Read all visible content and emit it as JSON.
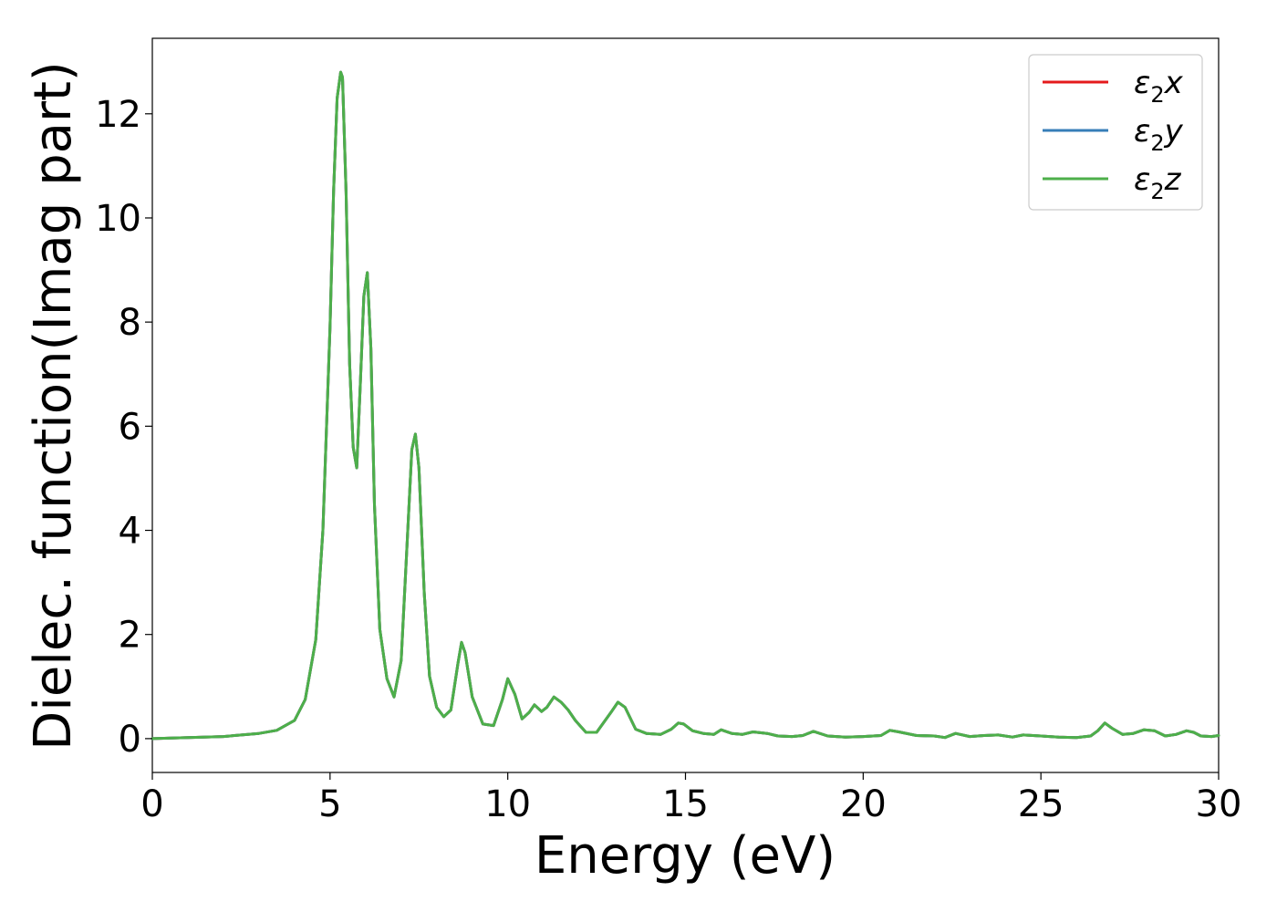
{
  "chart_data": {
    "type": "line",
    "title": "",
    "xlabel": "Energy (eV)",
    "ylabel": "Dielec. function(Imag part)",
    "xlim": [
      0,
      30
    ],
    "ylim": [
      -0.65,
      13.45
    ],
    "xticks": [
      0,
      5,
      10,
      15,
      20,
      25,
      30
    ],
    "yticks": [
      0,
      2,
      4,
      6,
      8,
      10,
      12
    ],
    "xtick_labels": [
      "0",
      "5",
      "10",
      "15",
      "20",
      "25",
      "30"
    ],
    "ytick_labels": [
      "0",
      "2",
      "4",
      "6",
      "8",
      "10",
      "12"
    ],
    "grid": false,
    "legend_position": "top-right",
    "colors": {
      "red": "#e41a1c",
      "blue": "#377eb8",
      "green": "#4daf4a"
    },
    "x": [
      0,
      1,
      2,
      3,
      3.5,
      4,
      4.3,
      4.6,
      4.8,
      5.0,
      5.1,
      5.2,
      5.3,
      5.35,
      5.45,
      5.55,
      5.65,
      5.75,
      5.85,
      5.95,
      6.05,
      6.15,
      6.25,
      6.4,
      6.6,
      6.8,
      7.0,
      7.15,
      7.3,
      7.4,
      7.5,
      7.65,
      7.8,
      8.0,
      8.2,
      8.4,
      8.6,
      8.7,
      8.8,
      9.0,
      9.3,
      9.6,
      9.85,
      10.0,
      10.2,
      10.4,
      10.6,
      10.75,
      10.95,
      11.1,
      11.3,
      11.5,
      11.7,
      11.9,
      12.2,
      12.5,
      12.9,
      13.1,
      13.3,
      13.6,
      13.9,
      14.3,
      14.6,
      14.8,
      14.95,
      15.2,
      15.5,
      15.8,
      16.0,
      16.3,
      16.6,
      16.9,
      17.3,
      17.6,
      18.0,
      18.3,
      18.6,
      19.0,
      19.5,
      20.0,
      20.5,
      20.75,
      21.0,
      21.5,
      22.0,
      22.3,
      22.6,
      23.0,
      23.4,
      23.8,
      24.2,
      24.5,
      25.0,
      25.5,
      26.0,
      26.4,
      26.6,
      26.8,
      27.0,
      27.3,
      27.6,
      27.9,
      28.2,
      28.5,
      28.8,
      29.1,
      29.3,
      29.5,
      29.8,
      30.0
    ],
    "series": [
      {
        "name": "ε₂x",
        "color": "#e41a1c",
        "values": [
          0.0,
          0.02,
          0.04,
          0.1,
          0.16,
          0.35,
          0.75,
          1.9,
          4.0,
          7.9,
          10.5,
          12.3,
          12.8,
          12.7,
          10.5,
          7.2,
          5.6,
          5.2,
          6.8,
          8.5,
          8.95,
          7.5,
          4.5,
          2.1,
          1.15,
          0.8,
          1.5,
          3.5,
          5.55,
          5.85,
          5.2,
          2.8,
          1.2,
          0.6,
          0.42,
          0.55,
          1.45,
          1.85,
          1.65,
          0.8,
          0.28,
          0.25,
          0.75,
          1.15,
          0.85,
          0.38,
          0.5,
          0.65,
          0.52,
          0.6,
          0.8,
          0.7,
          0.55,
          0.35,
          0.12,
          0.12,
          0.5,
          0.7,
          0.6,
          0.18,
          0.1,
          0.08,
          0.18,
          0.3,
          0.28,
          0.15,
          0.1,
          0.08,
          0.17,
          0.1,
          0.08,
          0.13,
          0.1,
          0.05,
          0.04,
          0.06,
          0.14,
          0.05,
          0.03,
          0.04,
          0.06,
          0.16,
          0.13,
          0.06,
          0.05,
          0.02,
          0.1,
          0.04,
          0.06,
          0.07,
          0.03,
          0.07,
          0.05,
          0.03,
          0.02,
          0.05,
          0.15,
          0.3,
          0.2,
          0.08,
          0.1,
          0.17,
          0.15,
          0.05,
          0.08,
          0.15,
          0.12,
          0.05,
          0.04,
          0.06
        ]
      },
      {
        "name": "ε₂y",
        "color": "#377eb8",
        "values": [
          0.0,
          0.02,
          0.04,
          0.1,
          0.16,
          0.35,
          0.75,
          1.9,
          4.0,
          7.9,
          10.5,
          12.3,
          12.8,
          12.7,
          10.5,
          7.2,
          5.6,
          5.2,
          6.8,
          8.5,
          8.95,
          7.5,
          4.5,
          2.1,
          1.15,
          0.8,
          1.5,
          3.5,
          5.55,
          5.85,
          5.2,
          2.8,
          1.2,
          0.6,
          0.42,
          0.55,
          1.45,
          1.85,
          1.65,
          0.8,
          0.28,
          0.25,
          0.75,
          1.15,
          0.85,
          0.38,
          0.5,
          0.65,
          0.52,
          0.6,
          0.8,
          0.7,
          0.55,
          0.35,
          0.12,
          0.12,
          0.5,
          0.7,
          0.6,
          0.18,
          0.1,
          0.08,
          0.18,
          0.3,
          0.28,
          0.15,
          0.1,
          0.08,
          0.17,
          0.1,
          0.08,
          0.13,
          0.1,
          0.05,
          0.04,
          0.06,
          0.14,
          0.05,
          0.03,
          0.04,
          0.06,
          0.16,
          0.13,
          0.06,
          0.05,
          0.02,
          0.1,
          0.04,
          0.06,
          0.07,
          0.03,
          0.07,
          0.05,
          0.03,
          0.02,
          0.05,
          0.15,
          0.3,
          0.2,
          0.08,
          0.1,
          0.17,
          0.15,
          0.05,
          0.08,
          0.15,
          0.12,
          0.05,
          0.04,
          0.06
        ]
      },
      {
        "name": "ε₂z",
        "color": "#4daf4a",
        "values": [
          0.0,
          0.02,
          0.04,
          0.1,
          0.16,
          0.35,
          0.75,
          1.9,
          4.0,
          7.9,
          10.5,
          12.3,
          12.8,
          12.7,
          10.5,
          7.2,
          5.6,
          5.2,
          6.8,
          8.5,
          8.95,
          7.5,
          4.5,
          2.1,
          1.15,
          0.8,
          1.5,
          3.5,
          5.55,
          5.85,
          5.2,
          2.8,
          1.2,
          0.6,
          0.42,
          0.55,
          1.45,
          1.85,
          1.65,
          0.8,
          0.28,
          0.25,
          0.75,
          1.15,
          0.85,
          0.38,
          0.5,
          0.65,
          0.52,
          0.6,
          0.8,
          0.7,
          0.55,
          0.35,
          0.12,
          0.12,
          0.5,
          0.7,
          0.6,
          0.18,
          0.1,
          0.08,
          0.18,
          0.3,
          0.28,
          0.15,
          0.1,
          0.08,
          0.17,
          0.1,
          0.08,
          0.13,
          0.1,
          0.05,
          0.04,
          0.06,
          0.14,
          0.05,
          0.03,
          0.04,
          0.06,
          0.16,
          0.13,
          0.06,
          0.05,
          0.02,
          0.1,
          0.04,
          0.06,
          0.07,
          0.03,
          0.07,
          0.05,
          0.03,
          0.02,
          0.05,
          0.15,
          0.3,
          0.2,
          0.08,
          0.1,
          0.17,
          0.15,
          0.05,
          0.08,
          0.15,
          0.12,
          0.05,
          0.04,
          0.06
        ]
      }
    ],
    "legend": [
      {
        "label": "ε",
        "sub": "2",
        "suffix": "x",
        "color": "#e41a1c"
      },
      {
        "label": "ε",
        "sub": "2",
        "suffix": "y",
        "color": "#377eb8"
      },
      {
        "label": "ε",
        "sub": "2",
        "suffix": "z",
        "color": "#4daf4a"
      }
    ]
  }
}
